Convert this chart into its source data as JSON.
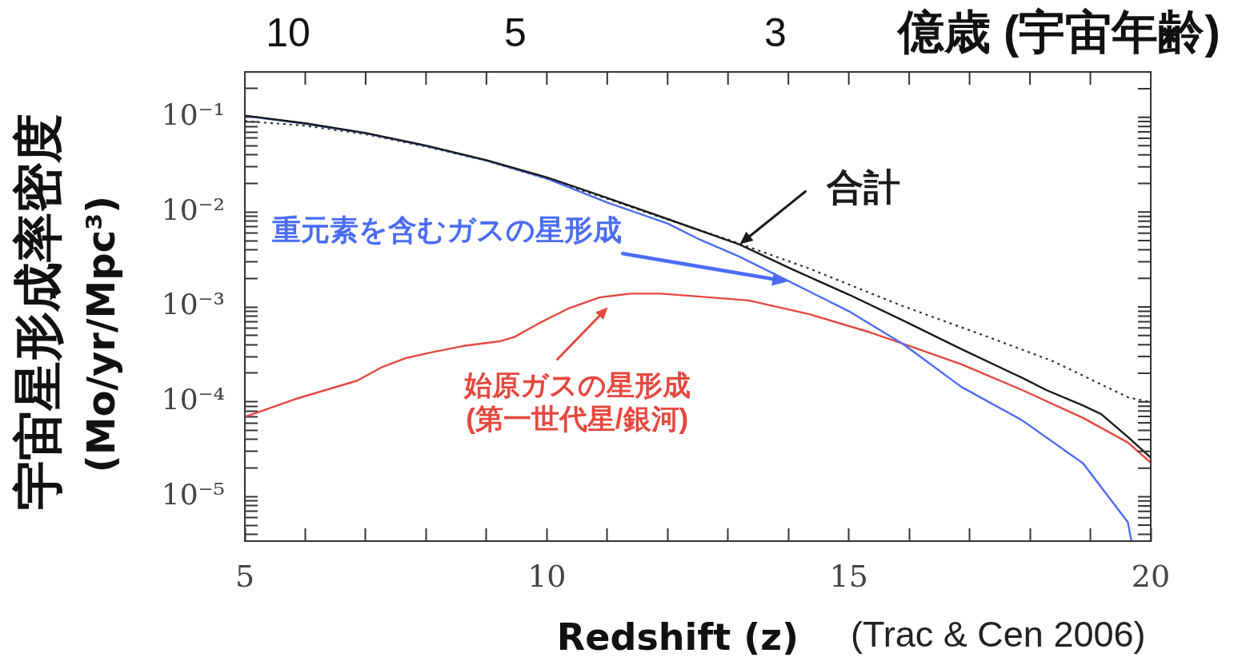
{
  "chart_data": {
    "type": "line",
    "log": "y",
    "marker": "none",
    "xlabel": "Redshift (z)",
    "ylabel": "宇宙星形成率密度\n(Mo/yr/Mpc³)",
    "xlim": [
      5,
      20
    ],
    "xticks": [
      5,
      {
        "value": 6,
        "label": null
      },
      {
        "value": 7,
        "label": null
      },
      {
        "value": 8,
        "label": null
      },
      {
        "value": 9,
        "label": null
      },
      10,
      {
        "value": 11,
        "label": null
      },
      {
        "value": 12,
        "label": null
      },
      {
        "value": 13,
        "label": null
      },
      {
        "value": 14,
        "label": null
      },
      15,
      {
        "value": 16,
        "label": null
      },
      {
        "value": 17,
        "label": null
      },
      {
        "value": 18,
        "label": null
      },
      {
        "value": 19,
        "label": null
      },
      20
    ],
    "ylim": [
      3.4e-06,
      0.3
    ],
    "yticks": [
      {
        "value": 4e-06,
        "label": null
      },
      {
        "value": 5e-06,
        "label": null
      },
      {
        "value": 6e-06,
        "label": null
      },
      {
        "value": 7e-06,
        "label": null
      },
      {
        "value": 8e-06,
        "label": null
      },
      {
        "value": 9e-06,
        "label": null
      },
      {
        "value": 1e-05,
        "label": "10⁻⁵"
      },
      {
        "value": 2e-05,
        "label": null
      },
      {
        "value": 3e-05,
        "label": null
      },
      {
        "value": 4e-05,
        "label": null
      },
      {
        "value": 5e-05,
        "label": null
      },
      {
        "value": 6e-05,
        "label": null
      },
      {
        "value": 7e-05,
        "label": null
      },
      {
        "value": 8e-05,
        "label": null
      },
      {
        "value": 9e-05,
        "label": null
      },
      {
        "value": 0.0001,
        "label": "10⁻⁴"
      },
      {
        "value": 0.0002,
        "label": null
      },
      {
        "value": 0.0003,
        "label": null
      },
      {
        "value": 0.0004,
        "label": null
      },
      {
        "value": 0.0005,
        "label": null
      },
      {
        "value": 0.0006,
        "label": null
      },
      {
        "value": 0.0007,
        "label": null
      },
      {
        "value": 0.0008,
        "label": null
      },
      {
        "value": 0.0009,
        "label": null
      },
      {
        "value": 0.001,
        "label": "10⁻³"
      },
      {
        "value": 0.002,
        "label": null
      },
      {
        "value": 0.003,
        "label": null
      },
      {
        "value": 0.004,
        "label": null
      },
      {
        "value": 0.005,
        "label": null
      },
      {
        "value": 0.006,
        "label": null
      },
      {
        "value": 0.007,
        "label": null
      },
      {
        "value": 0.008,
        "label": null
      },
      {
        "value": 0.009,
        "label": null
      },
      {
        "value": 0.01,
        "label": "10⁻²"
      },
      {
        "value": 0.02,
        "label": null
      },
      {
        "value": 0.03,
        "label": null
      },
      {
        "value": 0.04,
        "label": null
      },
      {
        "value": 0.05,
        "label": null
      },
      {
        "value": 0.06,
        "label": null
      },
      {
        "value": 0.07,
        "label": null
      },
      {
        "value": 0.08,
        "label": null
      },
      {
        "value": 0.09,
        "label": null
      },
      {
        "value": 0.1,
        "label": "10⁻¹"
      },
      {
        "value": 0.2,
        "label": null
      }
    ],
    "series": [
      {
        "color": "#1a1a1a",
        "x": [
          5,
          6,
          7,
          8,
          9,
          10,
          11,
          12,
          13.19,
          14.04,
          15,
          15.91,
          16.86,
          17.87,
          18.27,
          18.88,
          19.18,
          19.62,
          20
        ],
        "values": [
          0.104,
          0.0863,
          0.0682,
          0.0502,
          0.0353,
          0.0232,
          0.0141,
          0.00845,
          0.00455,
          0.00253,
          0.00135,
          0.000713,
          0.00036,
          0.000179,
          0.000133,
          9.12e-05,
          7.41e-05,
          4.27e-05,
          2.57e-05
        ]
      },
      {
        "color": "#4a6cf5",
        "x": [
          5,
          6,
          7,
          8,
          9,
          10,
          11,
          12,
          12.5,
          13.19,
          14.04,
          15,
          15.91,
          16.86,
          17.87,
          18.88,
          19.33,
          19.62,
          19.68
        ],
        "values": [
          0.103,
          0.0855,
          0.0676,
          0.0498,
          0.0349,
          0.0226,
          0.0126,
          0.00757,
          0.00525,
          0.00339,
          0.00182,
          0.000902,
          0.000402,
          0.000144,
          6.38e-05,
          2.24e-05,
          9.42e-06,
          5.4e-06,
          3.4e-06
        ]
      },
      {
        "color": "#e5483f",
        "x": [
          5,
          5.86,
          6.86,
          7.27,
          7.67,
          8.12,
          8.62,
          9.22,
          9.47,
          9.87,
          10.37,
          10.87,
          11.38,
          11.88,
          12.5,
          13.34,
          14.35,
          15.35,
          15.91,
          16.86,
          17.87,
          18.88,
          19.62,
          20
        ],
        "values": [
          6.93e-05,
          0.000108,
          0.000167,
          0.000232,
          0.00029,
          0.000335,
          0.000388,
          0.000434,
          0.000484,
          0.000673,
          0.000971,
          0.00126,
          0.00138,
          0.00138,
          0.00129,
          0.00117,
          0.000837,
          0.00054,
          0.000407,
          0.000249,
          0.000133,
          6.76e-05,
          3.72e-05,
          2.28e-05
        ]
      },
      {
        "color": "#333333",
        "line_style": "dotted",
        "x": [
          5,
          6,
          7,
          8,
          9,
          10,
          11,
          12,
          13,
          14.35,
          15.86,
          17.37,
          18.38,
          19.63,
          20
        ],
        "values": [
          0.0912,
          0.0813,
          0.0661,
          0.049,
          0.0347,
          0.0224,
          0.0138,
          0.00832,
          0.00513,
          0.00253,
          0.00104,
          0.000466,
          0.000268,
          0.000111,
          9.93e-05
        ]
      }
    ],
    "annotations": [
      "10",
      "5",
      "3",
      "億歳 (宇宙年齢)",
      {
        "text": "合計",
        "x": 13.19,
        "y": 0.00455
      },
      "重元素を含むガスの星形成",
      {
        "text": "始原ガスの星形成\n(第一世代星/銀河)",
        "x": 11.19,
        "y": 0.0013
      },
      "(Trac & Cen 2006)"
    ]
  }
}
